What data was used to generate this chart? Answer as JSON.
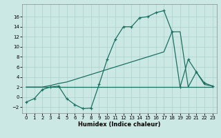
{
  "xlabel": "Humidex (Indice chaleur)",
  "background_color": "#cce8e5",
  "grid_color": "#afd4d0",
  "line_color": "#1a7060",
  "xlim": [
    -0.5,
    23.5
  ],
  "ylim": [
    -3.2,
    18.5
  ],
  "yticks": [
    -2,
    0,
    2,
    4,
    6,
    8,
    10,
    12,
    14,
    16
  ],
  "xticks": [
    0,
    1,
    2,
    3,
    4,
    5,
    6,
    7,
    8,
    9,
    10,
    11,
    12,
    13,
    14,
    15,
    16,
    17,
    18,
    19,
    20,
    21,
    22,
    23
  ],
  "series1_x": [
    0,
    1,
    2,
    3,
    4,
    5,
    6,
    7,
    8,
    9,
    10,
    11,
    12,
    13,
    14,
    15,
    16,
    17,
    18,
    19,
    20,
    21,
    22,
    23
  ],
  "series1_y": [
    -1.0,
    -0.3,
    1.5,
    2.0,
    2.2,
    -0.3,
    -1.5,
    -2.3,
    -2.2,
    2.5,
    7.5,
    11.5,
    14.0,
    14.0,
    15.8,
    16.0,
    16.8,
    17.2,
    13.0,
    2.0,
    7.5,
    5.0,
    2.8,
    2.2
  ],
  "series2_x": [
    0,
    1,
    2,
    3,
    4,
    5,
    6,
    7,
    8,
    9,
    10,
    11,
    12,
    13,
    14,
    15,
    16,
    17,
    18,
    19,
    20,
    21,
    22,
    23
  ],
  "series2_y": [
    2.0,
    2.0,
    2.0,
    2.0,
    2.0,
    2.0,
    2.0,
    2.0,
    2.0,
    2.0,
    2.0,
    2.0,
    2.0,
    2.0,
    2.0,
    2.0,
    2.0,
    2.0,
    2.0,
    2.0,
    2.0,
    2.0,
    2.0,
    2.0
  ],
  "series3_x": [
    0,
    1,
    2,
    3,
    4,
    5,
    6,
    7,
    8,
    9,
    10,
    11,
    12,
    13,
    14,
    15,
    16,
    17,
    18,
    19,
    20,
    21,
    22,
    23
  ],
  "series3_y": [
    2.0,
    2.0,
    2.0,
    2.3,
    2.7,
    3.0,
    3.5,
    4.0,
    4.5,
    5.0,
    5.5,
    6.0,
    6.5,
    7.0,
    7.5,
    8.0,
    8.5,
    9.0,
    13.0,
    13.0,
    2.0,
    5.0,
    2.5,
    2.2
  ]
}
